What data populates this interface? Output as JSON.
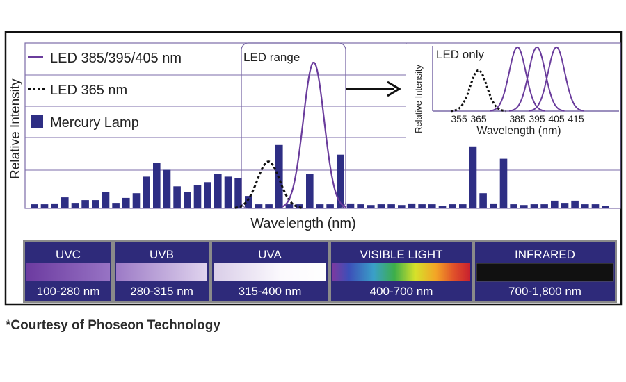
{
  "chart_data": [
    {
      "type": "bar",
      "title": "",
      "xlabel": "Wavelength (nm)",
      "ylabel": "Relative Intensity",
      "ylim": [
        0,
        6
      ],
      "grid": true,
      "legend": [
        {
          "key": "led_uv",
          "label": "LED 385/395/405 nm",
          "style": "purple line",
          "color": "#6a3c9c"
        },
        {
          "key": "led_365",
          "label": "LED 365 nm",
          "style": "black dotted line",
          "color": "#111111"
        },
        {
          "key": "mercury",
          "label": "Mercury Lamp",
          "style": "navy bars",
          "color": "#2e2e84"
        }
      ],
      "mercury_lamp_values": [
        0.15,
        0.15,
        0.18,
        0.4,
        0.2,
        0.3,
        0.3,
        0.58,
        0.2,
        0.38,
        0.55,
        1.15,
        1.65,
        1.4,
        0.8,
        0.6,
        0.85,
        0.95,
        1.25,
        1.15,
        1.1,
        0.45,
        0.15,
        0.15,
        2.3,
        0.15,
        0.15,
        1.25,
        0.15,
        0.15,
        1.95,
        0.18,
        0.15,
        0.12,
        0.15,
        0.15,
        0.12,
        0.18,
        0.15,
        0.15,
        0.1,
        0.15,
        0.15,
        2.25,
        0.55,
        0.18,
        1.8,
        0.15,
        0.12,
        0.15,
        0.15,
        0.28,
        0.2,
        0.28,
        0.15,
        0.15,
        0.1
      ],
      "led_365_peak": 1.7,
      "led_uv_peak": 5.3,
      "annotations": {
        "led_range": "LED range"
      },
      "inset": {
        "title": "LED only",
        "xlabel": "Wavelength (nm)",
        "ylabel": "Relative Intensity",
        "x_ticks": [
          "355",
          "365",
          "385",
          "395",
          "405",
          "415"
        ],
        "series": [
          {
            "name": "LED 365 nm",
            "peak_nm": 365,
            "peak": 0.62,
            "style": "dotted"
          },
          {
            "name": "LED 385 nm",
            "peak_nm": 385,
            "peak": 0.97,
            "style": "solid"
          },
          {
            "name": "LED 395 nm",
            "peak_nm": 395,
            "peak": 0.97,
            "style": "solid"
          },
          {
            "name": "LED 405 nm",
            "peak_nm": 405,
            "peak": 0.97,
            "style": "solid"
          }
        ]
      }
    }
  ],
  "spectrum_bands": [
    {
      "name": "UVC",
      "range": "100-280 nm"
    },
    {
      "name": "UVB",
      "range": "280-315 nm"
    },
    {
      "name": "UVA",
      "range": "315-400 nm"
    },
    {
      "name": "VISIBLE LIGHT",
      "range": "400-700 nm"
    },
    {
      "name": "INFRARED",
      "range": "700-1,800 nm"
    }
  ],
  "footer": {
    "credit": "*Courtesy of Phoseon Technology"
  },
  "colors": {
    "navy": "#2e2e84",
    "band_bg": "#2e2a7a",
    "purple": "#6a3c9c",
    "grid": "#7b6ba8",
    "frame": "#111111"
  }
}
